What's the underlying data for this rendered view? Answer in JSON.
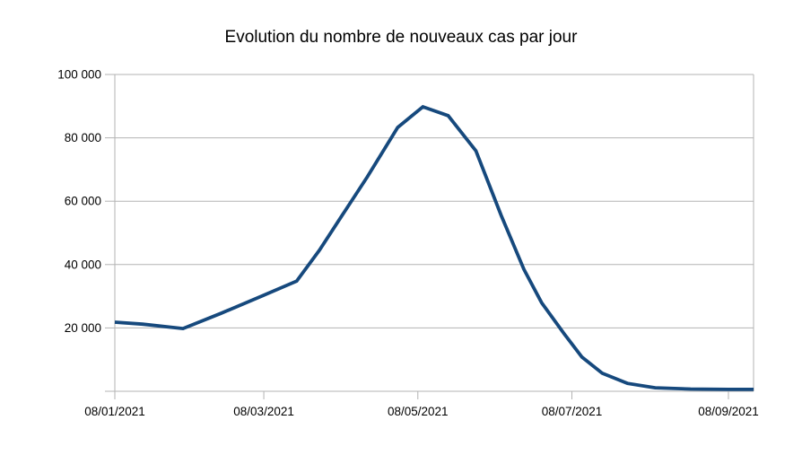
{
  "page": {
    "background": "#ffffff"
  },
  "chart_data": {
    "type": "line",
    "title": "Evolution du nombre de nouveaux cas par jour",
    "xlabel": "",
    "ylabel": "",
    "ylim": [
      0,
      100000
    ],
    "grid": "horizontal-only",
    "legend": "none",
    "axis_color": "#b3b3b3",
    "text_color": "#000000",
    "x_ticks": [
      "08/01/2021",
      "08/03/2021",
      "08/05/2021",
      "08/07/2021",
      "08/09/2021"
    ],
    "y_ticks": [
      {
        "value": 0,
        "label": ""
      },
      {
        "value": 20000,
        "label": "20 000"
      },
      {
        "value": 40000,
        "label": "40 000"
      },
      {
        "value": 60000,
        "label": "60 000"
      },
      {
        "value": 80000,
        "label": "80 000"
      },
      {
        "value": 100000,
        "label": "100 000"
      }
    ],
    "series": [
      {
        "name": "nouveaux cas par jour",
        "color": "#16497d",
        "stroke_width": 3.8,
        "points": [
          {
            "date": "08/01/2021",
            "value": 21800
          },
          {
            "date": "19/01/2021",
            "value": 21200
          },
          {
            "date": "04/02/2021",
            "value": 19800
          },
          {
            "date": "19/02/2021",
            "value": 24600
          },
          {
            "date": "07/03/2021",
            "value": 30000
          },
          {
            "date": "21/03/2021",
            "value": 34800
          },
          {
            "date": "30/03/2021",
            "value": 44500
          },
          {
            "date": "08/04/2021",
            "value": 55500
          },
          {
            "date": "18/04/2021",
            "value": 67700
          },
          {
            "date": "30/04/2021",
            "value": 83300
          },
          {
            "date": "10/05/2021",
            "value": 89800
          },
          {
            "date": "20/05/2021",
            "value": 87000
          },
          {
            "date": "31/05/2021",
            "value": 75900
          },
          {
            "date": "10/06/2021",
            "value": 55500
          },
          {
            "date": "19/06/2021",
            "value": 38500
          },
          {
            "date": "26/06/2021",
            "value": 28000
          },
          {
            "date": "05/07/2021",
            "value": 18100
          },
          {
            "date": "12/07/2021",
            "value": 10800
          },
          {
            "date": "20/07/2021",
            "value": 5700
          },
          {
            "date": "30/07/2021",
            "value": 2500
          },
          {
            "date": "10/08/2021",
            "value": 1100
          },
          {
            "date": "24/08/2021",
            "value": 700
          },
          {
            "date": "08/09/2021",
            "value": 600
          },
          {
            "date": "18/09/2021",
            "value": 600
          }
        ]
      }
    ]
  }
}
